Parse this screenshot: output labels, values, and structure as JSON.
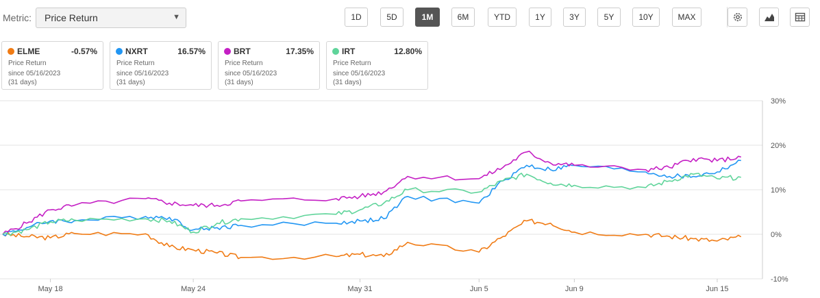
{
  "toolbar": {
    "metric_label": "Metric:",
    "metric_value": "Price Return",
    "ranges": [
      "1D",
      "5D",
      "1M",
      "6M",
      "YTD",
      "1Y",
      "3Y",
      "5Y",
      "10Y",
      "MAX"
    ],
    "active_range": "1M",
    "icons": [
      "gear-icon",
      "mountain-chart-icon",
      "table-icon"
    ]
  },
  "cards": [
    {
      "ticker": "ELME",
      "value": "-0.57%",
      "metric": "Price Return",
      "since": "since 05/16/2023",
      "days": "(31 days)",
      "color": "#f07b14"
    },
    {
      "ticker": "NXRT",
      "value": "16.57%",
      "metric": "Price Return",
      "since": "since 05/16/2023",
      "days": "(31 days)",
      "color": "#2196f3"
    },
    {
      "ticker": "BRT",
      "value": "17.35%",
      "metric": "Price Return",
      "since": "since 05/16/2023",
      "days": "(31 days)",
      "color": "#c41fc4"
    },
    {
      "ticker": "IRT",
      "value": "12.80%",
      "metric": "Price Return",
      "since": "since 05/16/2023",
      "days": "(31 days)",
      "color": "#5fd49a"
    }
  ],
  "chart_data": {
    "type": "line",
    "x_dates": [
      "2023-05-16",
      "2023-05-17",
      "2023-05-18",
      "2023-05-19",
      "2023-05-22",
      "2023-05-23",
      "2023-05-24",
      "2023-05-25",
      "2023-05-26",
      "2023-05-30",
      "2023-05-31",
      "2023-06-01",
      "2023-06-02",
      "2023-06-05",
      "2023-06-06",
      "2023-06-07",
      "2023-06-08",
      "2023-06-09",
      "2023-06-12",
      "2023-06-13",
      "2023-06-14",
      "2023-06-15",
      "2023-06-16"
    ],
    "x_tick_labels": [
      "May 18",
      "May 24",
      "May 31",
      "Jun 5",
      "Jun 9",
      "Jun 15"
    ],
    "x_tick_dates": [
      "2023-05-18",
      "2023-05-24",
      "2023-05-31",
      "2023-06-05",
      "2023-06-09",
      "2023-06-15"
    ],
    "y_ticks": [
      30,
      20,
      10,
      0,
      -10
    ],
    "y_tick_labels": [
      "30%",
      "20%",
      "10%",
      "0%",
      "-10%"
    ],
    "ylim": [
      -10,
      30
    ],
    "grid": true,
    "series": [
      {
        "name": "ELME",
        "color": "#f07b14",
        "values": [
          0,
          -0.5,
          -0.8,
          0.2,
          0.1,
          -2.8,
          -3.5,
          -4.2,
          -5.2,
          -5.0,
          -4.5,
          -5.0,
          -1.8,
          -4.0,
          -0.5,
          3.0,
          2.5,
          0.5,
          0,
          -0.5,
          -1.0,
          -1.5,
          -0.57
        ]
      },
      {
        "name": "NXRT",
        "color": "#2196f3",
        "values": [
          0,
          1.5,
          3.0,
          3.0,
          4.0,
          3.8,
          1.0,
          1.5,
          2.0,
          2.5,
          3.0,
          3.5,
          8.5,
          7.0,
          12.0,
          15.5,
          14.5,
          15.5,
          14.0,
          13.0,
          13.0,
          14.0,
          16.57
        ]
      },
      {
        "name": "BRT",
        "color": "#c41fc4",
        "values": [
          0,
          2.5,
          5.5,
          6.5,
          8.0,
          7.0,
          6.5,
          6.5,
          7.5,
          8.0,
          8.5,
          9.5,
          13.0,
          12.5,
          15.0,
          18.5,
          16.0,
          15.5,
          14.5,
          15.0,
          17.0,
          16.5,
          17.35
        ]
      },
      {
        "name": "IRT",
        "color": "#5fd49a",
        "values": [
          0,
          1.0,
          2.8,
          3.2,
          3.5,
          3.0,
          0.5,
          2.5,
          3.5,
          4.5,
          5.5,
          7.0,
          10.0,
          9.5,
          12.0,
          13.5,
          11.5,
          11.0,
          10.5,
          12.0,
          13.5,
          12.5,
          12.8
        ]
      }
    ]
  }
}
